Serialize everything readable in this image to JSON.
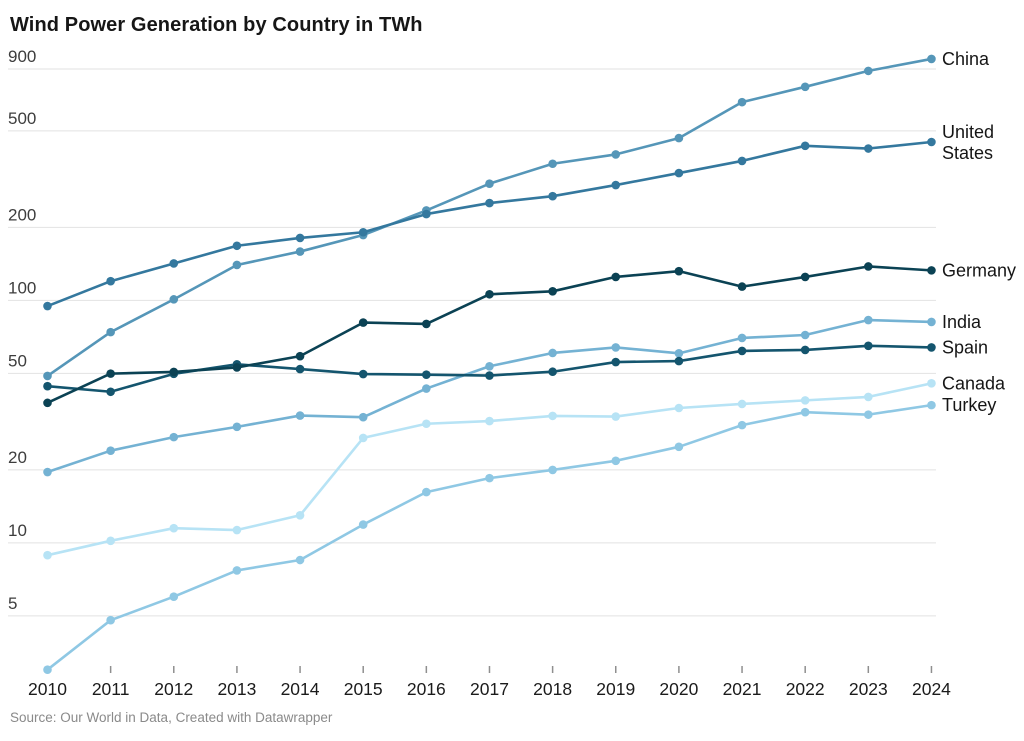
{
  "title": "Wind Power Generation by Country in TWh",
  "source": "Source: Our World in Data, Created with Datawrapper",
  "chart_data": {
    "type": "line",
    "title": "Wind Power Generation by Country in TWh",
    "xlabel": "",
    "ylabel": "TWh",
    "yscale": "log",
    "grid": true,
    "legend_position": "right-end-of-lines",
    "ylim": [
      2.8,
      1050
    ],
    "yticks": [
      900,
      500,
      200,
      100,
      50,
      20,
      10,
      5
    ],
    "x": [
      2010,
      2011,
      2012,
      2013,
      2014,
      2015,
      2016,
      2017,
      2018,
      2019,
      2020,
      2021,
      2022,
      2023,
      2024
    ],
    "series": [
      {
        "name": "Canada",
        "color": "#B7E3F5",
        "values": [
          8.9,
          10.2,
          11.5,
          11.3,
          13,
          27.1,
          31,
          31.8,
          33.4,
          33.2,
          36,
          37.4,
          38.7,
          40,
          45.5
        ]
      },
      {
        "name": "Turkey",
        "color": "#8FC8E4",
        "values": [
          3,
          4.8,
          6,
          7.7,
          8.5,
          11.9,
          16.2,
          18.5,
          20,
          21.8,
          24.9,
          30.6,
          34.6,
          33.8,
          37
        ]
      },
      {
        "name": "India",
        "color": "#74B2D3",
        "values": [
          19.6,
          24,
          27.3,
          30.1,
          33.5,
          33,
          43.3,
          53.5,
          60.7,
          64,
          60.5,
          70,
          72,
          83,
          81.5
        ]
      },
      {
        "name": "China",
        "color": "#5596B8",
        "values": [
          48.8,
          74,
          101,
          140,
          159,
          186,
          235,
          303,
          366,
          400,
          467,
          657,
          760,
          884,
          990
        ]
      },
      {
        "name": "United States",
        "color": "#34789E",
        "values": [
          94.8,
          120,
          142,
          168,
          181,
          191,
          227,
          252,
          269,
          299,
          335,
          376,
          434,
          423,
          450
        ]
      },
      {
        "name": "Spain",
        "color": "#14556E",
        "values": [
          44.3,
          42,
          49.8,
          54.5,
          52.1,
          49.7,
          49.4,
          49,
          50.8,
          55.7,
          56.2,
          61.9,
          62.5,
          65,
          64
        ]
      },
      {
        "name": "Germany",
        "color": "#0B4254",
        "values": [
          37.8,
          49.9,
          50.7,
          52.9,
          58.9,
          81,
          80,
          106,
          109,
          125,
          132,
          114,
          125,
          138,
          133
        ]
      }
    ],
    "colors": {
      "grid": "#e2e2e2",
      "y_tick_text": "#3d3d3d",
      "x_tick_text": "#1b1b1b",
      "tick_mark": "#8f8f8f",
      "label_text": "#161616"
    }
  }
}
